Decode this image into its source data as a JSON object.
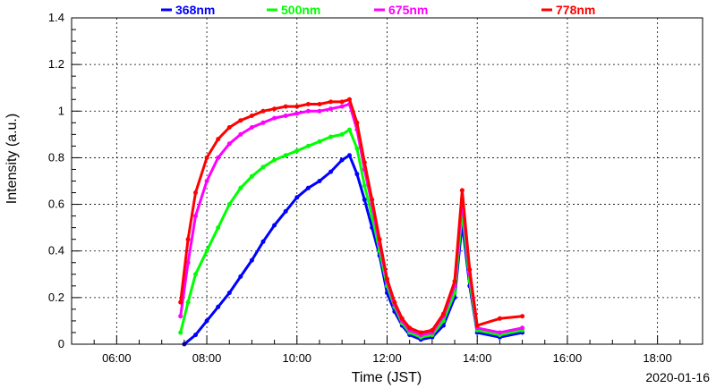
{
  "chart_data": {
    "type": "scatter",
    "xlabel": "Time (JST)",
    "ylabel": "Intensity (a.u.)",
    "date_label": "2020-01-16",
    "xlim": [
      "05:00",
      "19:00"
    ],
    "ylim": [
      0,
      1.4
    ],
    "x_ticks": [
      "06:00",
      "08:00",
      "10:00",
      "12:00",
      "14:00",
      "16:00",
      "18:00"
    ],
    "y_ticks": [
      "0",
      "0.2",
      "0.4",
      "0.6",
      "0.8",
      "1",
      "1.2",
      "1.4"
    ],
    "grid": true,
    "legend_position": "top",
    "series": [
      {
        "name": "368nm",
        "color": "#0000ff",
        "points": [
          [
            "07:30",
            0.0
          ],
          [
            "07:45",
            0.04
          ],
          [
            "08:00",
            0.1
          ],
          [
            "08:15",
            0.16
          ],
          [
            "08:30",
            0.22
          ],
          [
            "08:45",
            0.29
          ],
          [
            "09:00",
            0.36
          ],
          [
            "09:15",
            0.44
          ],
          [
            "09:30",
            0.51
          ],
          [
            "09:45",
            0.57
          ],
          [
            "10:00",
            0.63
          ],
          [
            "10:15",
            0.67
          ],
          [
            "10:30",
            0.7
          ],
          [
            "10:45",
            0.74
          ],
          [
            "11:00",
            0.79
          ],
          [
            "11:10",
            0.81
          ],
          [
            "11:20",
            0.73
          ],
          [
            "11:30",
            0.62
          ],
          [
            "11:40",
            0.5
          ],
          [
            "11:50",
            0.38
          ],
          [
            "12:00",
            0.22
          ],
          [
            "12:10",
            0.14
          ],
          [
            "12:20",
            0.08
          ],
          [
            "12:30",
            0.04
          ],
          [
            "12:45",
            0.02
          ],
          [
            "13:00",
            0.03
          ],
          [
            "13:15",
            0.08
          ],
          [
            "13:30",
            0.2
          ],
          [
            "13:40",
            0.52
          ],
          [
            "13:50",
            0.25
          ],
          [
            "14:00",
            0.05
          ],
          [
            "14:30",
            0.03
          ],
          [
            "15:00",
            0.05
          ]
        ]
      },
      {
        "name": "500nm",
        "color": "#00ff00",
        "points": [
          [
            "07:25",
            0.05
          ],
          [
            "07:35",
            0.18
          ],
          [
            "07:45",
            0.3
          ],
          [
            "08:00",
            0.4
          ],
          [
            "08:15",
            0.5
          ],
          [
            "08:30",
            0.6
          ],
          [
            "08:45",
            0.67
          ],
          [
            "09:00",
            0.72
          ],
          [
            "09:15",
            0.76
          ],
          [
            "09:30",
            0.79
          ],
          [
            "09:45",
            0.81
          ],
          [
            "10:00",
            0.83
          ],
          [
            "10:15",
            0.85
          ],
          [
            "10:30",
            0.87
          ],
          [
            "10:45",
            0.89
          ],
          [
            "11:00",
            0.9
          ],
          [
            "11:10",
            0.92
          ],
          [
            "11:20",
            0.84
          ],
          [
            "11:30",
            0.68
          ],
          [
            "11:40",
            0.55
          ],
          [
            "11:50",
            0.4
          ],
          [
            "12:00",
            0.25
          ],
          [
            "12:10",
            0.16
          ],
          [
            "12:20",
            0.09
          ],
          [
            "12:30",
            0.05
          ],
          [
            "12:45",
            0.03
          ],
          [
            "13:00",
            0.04
          ],
          [
            "13:15",
            0.1
          ],
          [
            "13:30",
            0.22
          ],
          [
            "13:40",
            0.57
          ],
          [
            "13:50",
            0.27
          ],
          [
            "14:00",
            0.06
          ],
          [
            "14:30",
            0.04
          ],
          [
            "15:00",
            0.06
          ]
        ]
      },
      {
        "name": "675nm",
        "color": "#ff00ff",
        "points": [
          [
            "07:25",
            0.12
          ],
          [
            "07:35",
            0.35
          ],
          [
            "07:45",
            0.55
          ],
          [
            "08:00",
            0.7
          ],
          [
            "08:15",
            0.8
          ],
          [
            "08:30",
            0.86
          ],
          [
            "08:45",
            0.9
          ],
          [
            "09:00",
            0.93
          ],
          [
            "09:15",
            0.95
          ],
          [
            "09:30",
            0.97
          ],
          [
            "09:45",
            0.98
          ],
          [
            "10:00",
            0.99
          ],
          [
            "10:15",
            1.0
          ],
          [
            "10:30",
            1.0
          ],
          [
            "10:45",
            1.01
          ],
          [
            "11:00",
            1.02
          ],
          [
            "11:10",
            1.03
          ],
          [
            "11:20",
            0.92
          ],
          [
            "11:30",
            0.75
          ],
          [
            "11:40",
            0.6
          ],
          [
            "11:50",
            0.43
          ],
          [
            "12:00",
            0.27
          ],
          [
            "12:10",
            0.17
          ],
          [
            "12:20",
            0.1
          ],
          [
            "12:30",
            0.06
          ],
          [
            "12:45",
            0.04
          ],
          [
            "13:00",
            0.05
          ],
          [
            "13:15",
            0.12
          ],
          [
            "13:30",
            0.25
          ],
          [
            "13:40",
            0.62
          ],
          [
            "13:50",
            0.3
          ],
          [
            "14:00",
            0.07
          ],
          [
            "14:30",
            0.05
          ],
          [
            "15:00",
            0.07
          ]
        ]
      },
      {
        "name": "778nm",
        "color": "#ff0000",
        "points": [
          [
            "07:25",
            0.18
          ],
          [
            "07:35",
            0.45
          ],
          [
            "07:45",
            0.65
          ],
          [
            "08:00",
            0.8
          ],
          [
            "08:15",
            0.88
          ],
          [
            "08:30",
            0.93
          ],
          [
            "08:45",
            0.96
          ],
          [
            "09:00",
            0.98
          ],
          [
            "09:15",
            1.0
          ],
          [
            "09:30",
            1.01
          ],
          [
            "09:45",
            1.02
          ],
          [
            "10:00",
            1.02
          ],
          [
            "10:15",
            1.03
          ],
          [
            "10:30",
            1.03
          ],
          [
            "10:45",
            1.04
          ],
          [
            "11:00",
            1.04
          ],
          [
            "11:10",
            1.05
          ],
          [
            "11:20",
            0.95
          ],
          [
            "11:30",
            0.78
          ],
          [
            "11:40",
            0.62
          ],
          [
            "11:50",
            0.45
          ],
          [
            "12:00",
            0.28
          ],
          [
            "12:10",
            0.18
          ],
          [
            "12:20",
            0.11
          ],
          [
            "12:30",
            0.07
          ],
          [
            "12:45",
            0.05
          ],
          [
            "13:00",
            0.06
          ],
          [
            "13:15",
            0.13
          ],
          [
            "13:30",
            0.27
          ],
          [
            "13:40",
            0.66
          ],
          [
            "13:50",
            0.32
          ],
          [
            "14:00",
            0.08
          ],
          [
            "14:30",
            0.11
          ],
          [
            "15:00",
            0.12
          ]
        ]
      }
    ]
  }
}
